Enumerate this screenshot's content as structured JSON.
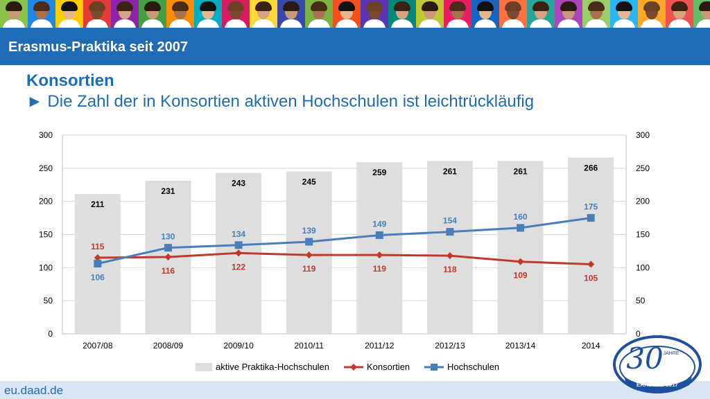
{
  "header": {
    "title": "Erasmus-Praktika seit 2007"
  },
  "slide": {
    "heading": "Konsortien",
    "subheading": "► Die Zahl der in Konsortien aktiven Hochschulen ist leichtrückläufig"
  },
  "footer": {
    "url": "eu.daad.de"
  },
  "logo": {
    "big_text": "30",
    "small_text": "JAHRE",
    "caption": "ERASMUS 2017"
  },
  "photo_strip": {
    "tile_colors": [
      "#8bc34a",
      "#1e88e5",
      "#ffcc00",
      "#e53935",
      "#8e24aa",
      "#43a047",
      "#fb8c00",
      "#00acc1",
      "#d81b60",
      "#fdd835",
      "#3949ab",
      "#7cb342",
      "#f4511e",
      "#5e35b1",
      "#00897b",
      "#c0ca33",
      "#e91e63",
      "#1565c0",
      "#ff7043",
      "#26a69a",
      "#ab47bc",
      "#9ccc65",
      "#29b6f6",
      "#ffa726",
      "#ef5350",
      "#66bb6a"
    ]
  },
  "colors": {
    "bar": "#dedede",
    "konsortien": "#c0392b",
    "hochschulen": "#4a7ebb",
    "grid": "#d9d9d9",
    "text": "#000000"
  },
  "chart_data": {
    "type": "bar",
    "categories": [
      "2007/08",
      "2008/09",
      "2009/10",
      "2010/11",
      "2011/12",
      "2012/13",
      "2013/14",
      "2014"
    ],
    "ylim": [
      0,
      300
    ],
    "y_ticks": [
      0,
      50,
      100,
      150,
      200,
      250,
      300
    ],
    "grid": true,
    "secondary_axis": true,
    "legend_position": "bottom",
    "series": [
      {
        "name": "aktive Praktika-Hochschulen",
        "type": "bar",
        "values": [
          211,
          231,
          243,
          245,
          259,
          261,
          261,
          266
        ]
      },
      {
        "name": "Konsortien",
        "type": "line",
        "marker": "diamond",
        "values": [
          115,
          116,
          122,
          119,
          119,
          118,
          109,
          105
        ]
      },
      {
        "name": "Hochschulen",
        "type": "line",
        "marker": "square",
        "values": [
          106,
          130,
          134,
          139,
          149,
          154,
          160,
          175
        ]
      }
    ]
  }
}
